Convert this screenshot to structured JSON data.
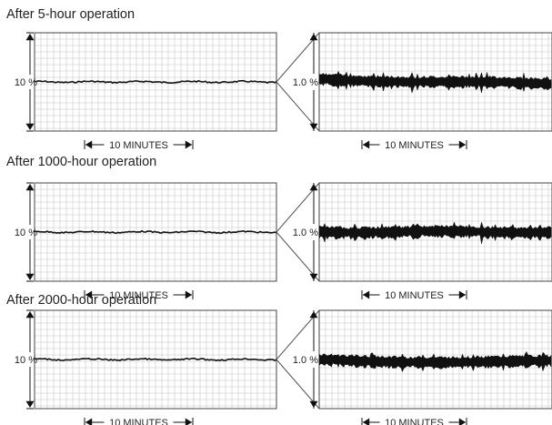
{
  "figure": {
    "line_color": "#111111",
    "grid_color": "#c6c6c6",
    "frame_color": "#444444"
  },
  "chart_data": [
    {
      "type": "line",
      "title": "After 5-hour operation",
      "panels": [
        {
          "name": "overview",
          "ylabel": "10 %",
          "xlabel": "10 MINUTES",
          "ripple_scale": "fine"
        },
        {
          "name": "magnified",
          "ylabel": "1.0 %",
          "xlabel": "10 MINUTES",
          "ripple_scale": "coarse"
        }
      ]
    },
    {
      "type": "line",
      "title": "After 1000-hour operation",
      "panels": [
        {
          "name": "overview",
          "ylabel": "10 %",
          "xlabel": "10 MINUTES",
          "ripple_scale": "fine"
        },
        {
          "name": "magnified",
          "ylabel": "1.0 %",
          "xlabel": "10 MINUTES",
          "ripple_scale": "coarse"
        }
      ]
    },
    {
      "type": "line",
      "title": "After 2000-hour operation",
      "panels": [
        {
          "name": "overview",
          "ylabel": "10 %",
          "xlabel": "10 MINUTES",
          "ripple_scale": "fine"
        },
        {
          "name": "magnified",
          "ylabel": "1.0 %",
          "xlabel": "10 MINUTES",
          "ripple_scale": "coarse"
        }
      ]
    }
  ]
}
